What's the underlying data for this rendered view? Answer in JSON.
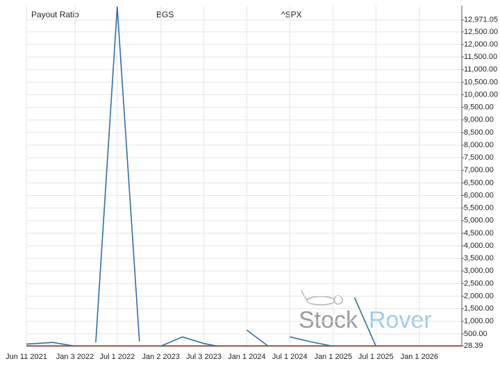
{
  "chart_data": {
    "type": "line",
    "title": "Payout Ratio",
    "x": [
      "2021-06-11",
      "2021-10-01",
      "2022-01-03",
      "2022-02-15",
      "2022-04-01",
      "2022-07-01",
      "2022-10-03",
      "2022-11-15",
      "2023-01-02",
      "2023-04-03",
      "2023-07-03",
      "2023-09-01",
      "2023-11-15",
      "2024-01-01",
      "2024-04-01",
      "2024-05-15",
      "2024-07-01",
      "2024-10-01",
      "2025-01-01",
      "2025-02-15",
      "2025-04-01",
      "2025-07-01",
      "2025-10-01",
      "2026-01-01",
      "2026-04-01",
      "2026-06-30"
    ],
    "series": [
      {
        "name": "BGS",
        "color": "#2e6da4",
        "values": [
          95,
          160,
          15,
          null,
          160,
          13500,
          200,
          null,
          15,
          380,
          120,
          10,
          null,
          650,
          10,
          null,
          380,
          180,
          10,
          null,
          1950,
          10,
          null,
          null,
          null,
          null
        ]
      },
      {
        "name": "^SPX",
        "color": "#c0392b",
        "values": [
          28,
          27.6,
          27.2,
          27.5,
          27.8,
          28,
          28.2,
          28.1,
          27.9,
          27.7,
          27.8,
          28,
          28.1,
          28.2,
          28.3,
          28.2,
          28.1,
          28.3,
          28.4,
          28.4,
          28.3,
          28.4,
          28.4,
          28.39,
          28.39,
          28.39
        ]
      }
    ],
    "xlim": [
      "2021-06-11",
      "2026-06-30"
    ],
    "xticks": [
      "Jun 11 2021",
      "Jan 3 2022",
      "Jul 1 2022",
      "Jan 2 2023",
      "Jul 3 2023",
      "Jan 1 2024",
      "Jul 1 2024",
      "Jan 1 2025",
      "Jul 1 2025",
      "Jan 1 2026"
    ],
    "ylim": [
      0,
      13545
    ],
    "yticks": [
      {
        "value": 28.39,
        "label": "28.39"
      },
      {
        "value": 500,
        "label": "500.00"
      },
      {
        "value": 1000,
        "label": "1,000.00"
      },
      {
        "value": 1500,
        "label": "1,500.00"
      },
      {
        "value": 2000,
        "label": "2,000.00"
      },
      {
        "value": 2500,
        "label": "2,500.00"
      },
      {
        "value": 3000,
        "label": "3,000.00"
      },
      {
        "value": 3500,
        "label": "3,500.00"
      },
      {
        "value": 4000,
        "label": "4,000.00"
      },
      {
        "value": 4500,
        "label": "4,500.00"
      },
      {
        "value": 5000,
        "label": "5,000.00"
      },
      {
        "value": 5500,
        "label": "5,500.00"
      },
      {
        "value": 6000,
        "label": "6,000.00"
      },
      {
        "value": 6500,
        "label": "6,500.00"
      },
      {
        "value": 7000,
        "label": "7,000.00"
      },
      {
        "value": 7500,
        "label": "7,500.00"
      },
      {
        "value": 8000,
        "label": "8,000.00"
      },
      {
        "value": 8500,
        "label": "8,500.00"
      },
      {
        "value": 9000,
        "label": "9,000.00"
      },
      {
        "value": 9500,
        "label": "9,500.00"
      },
      {
        "value": 10000,
        "label": "10,000.00"
      },
      {
        "value": 10500,
        "label": "10,500.00"
      },
      {
        "value": 11000,
        "label": "11,000.00"
      },
      {
        "value": 11500,
        "label": "11,500.00"
      },
      {
        "value": 12000,
        "label": "12,000.00"
      },
      {
        "value": 12500,
        "label": "12,500.00"
      },
      {
        "value": 12971.05,
        "label": "12,971.05"
      }
    ],
    "grid": true,
    "watermark": [
      "Stock",
      "Rover"
    ]
  }
}
